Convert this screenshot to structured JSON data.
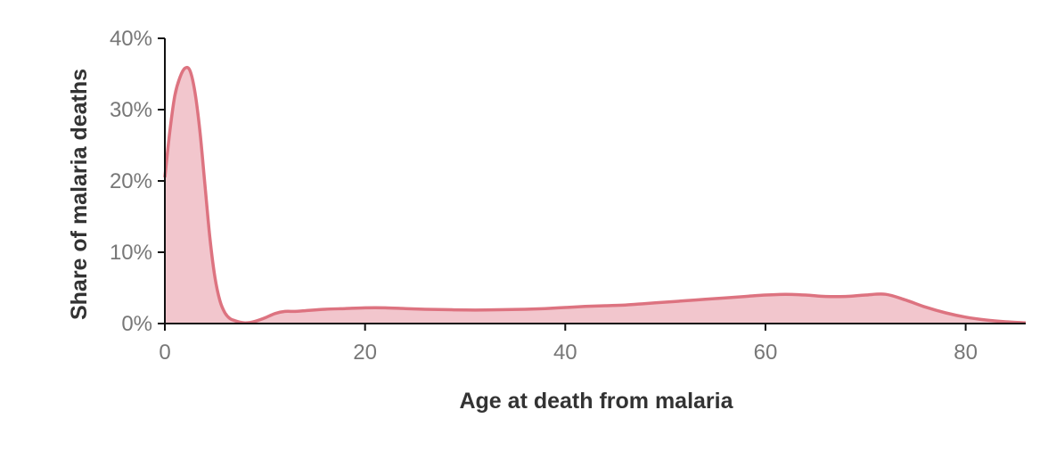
{
  "chart_data": {
    "type": "area",
    "title": "",
    "xlabel": "Age at death from malaria",
    "ylabel": "Share of malaria deaths",
    "xlim": [
      0,
      86
    ],
    "ylim": [
      0,
      40
    ],
    "x_ticks": [
      0,
      20,
      40,
      60,
      80
    ],
    "x_tick_labels": [
      "0",
      "20",
      "40",
      "60",
      "80"
    ],
    "y_ticks": [
      0,
      10,
      20,
      30,
      40
    ],
    "y_tick_labels": [
      "0%",
      "10%",
      "20%",
      "30%",
      "40%"
    ],
    "grid": false,
    "legend": "none",
    "colors": {
      "line": "#dd7380",
      "fill": "#f2c6cd",
      "axis": "#111111",
      "tick_text": "#777777",
      "title_text": "#333333"
    },
    "series": [
      {
        "x": [
          0,
          0.5,
          1,
          1.5,
          2,
          2.5,
          3,
          3.5,
          4,
          4.5,
          5,
          5.5,
          6,
          6.5,
          7,
          7.5,
          8,
          8.5,
          9,
          10,
          11,
          12,
          13,
          14,
          16,
          18,
          20,
          22,
          24,
          26,
          28,
          30,
          32,
          34,
          36,
          38,
          40,
          42,
          44,
          46,
          48,
          50,
          52,
          54,
          56,
          58,
          60,
          62,
          64,
          66,
          68,
          70,
          72,
          74,
          76,
          78,
          80,
          82,
          84,
          86
        ],
        "y": [
          20.5,
          27,
          32,
          34.5,
          35.8,
          35.5,
          32.5,
          27,
          19.5,
          12,
          6.5,
          3.2,
          1.5,
          0.7,
          0.4,
          0.2,
          0.1,
          0.15,
          0.3,
          0.8,
          1.4,
          1.7,
          1.7,
          1.8,
          2.0,
          2.1,
          2.2,
          2.2,
          2.1,
          2.0,
          1.95,
          1.9,
          1.9,
          1.95,
          2.0,
          2.1,
          2.25,
          2.4,
          2.5,
          2.6,
          2.8,
          3.0,
          3.2,
          3.4,
          3.6,
          3.8,
          4.0,
          4.1,
          4.0,
          3.8,
          3.8,
          4.0,
          4.1,
          3.3,
          2.3,
          1.5,
          0.9,
          0.5,
          0.25,
          0.1
        ]
      }
    ]
  }
}
